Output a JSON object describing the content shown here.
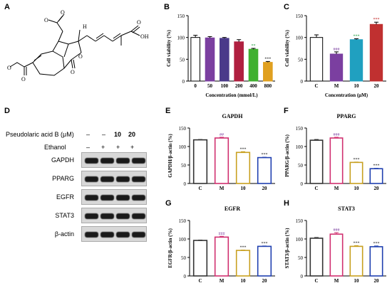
{
  "panels": {
    "A": "A",
    "B": "B",
    "C": "C",
    "D": "D",
    "E": "E",
    "F": "F",
    "G": "G",
    "H": "H"
  },
  "colors": {
    "axis": "#000000",
    "bar_C": "#333333",
    "bar_M": "#d03070",
    "bar_10": "#c8a020",
    "bar_20": "#2040b0",
    "sig_hash": "#7b3fa0",
    "sig_star_dark": "#222222",
    "sig_green": "#20a040",
    "sig_red": "#c02020"
  },
  "western_blot": {
    "treatment_label": "Pseudolaric acid B (μM)",
    "treatment_values": [
      "–",
      "–",
      "10",
      "20"
    ],
    "ethanol_label": "Ethanol",
    "ethanol_values": [
      "–",
      "+",
      "+",
      "+"
    ],
    "bands": [
      "GAPDH",
      "PPARG",
      "EGFR",
      "STAT3",
      "β-actin"
    ]
  },
  "chart_data": [
    {
      "id": "B",
      "type": "bar",
      "categories": [
        "0",
        "50",
        "100",
        "200",
        "400",
        "800"
      ],
      "values": [
        100,
        99,
        98,
        90,
        73,
        43
      ],
      "errors": [
        5,
        3,
        2,
        5,
        2,
        2
      ],
      "colors": [
        "#ffffff",
        "#7b3fa0",
        "#4a3a8a",
        "#b02040",
        "#40b030",
        "#e0a020"
      ],
      "sig": [
        "",
        "",
        "",
        "",
        "**",
        "***"
      ],
      "sig_colors": [
        "",
        "",
        "",
        "",
        "#20a040",
        "#222222"
      ],
      "xlabel": "Concentration (mmol/L)",
      "ylabel": "Cell viability (%)",
      "ylim": [
        0,
        150
      ],
      "yticks": [
        0,
        50,
        100,
        150
      ]
    },
    {
      "id": "C",
      "type": "bar",
      "categories": [
        "C",
        "M",
        "10",
        "20"
      ],
      "values": [
        100,
        62,
        95,
        130
      ],
      "errors": [
        6,
        5,
        2,
        5
      ],
      "colors": [
        "#ffffff",
        "#7b3fa0",
        "#20a0c0",
        "#c03030"
      ],
      "sig": [
        "",
        "###",
        "***",
        "***"
      ],
      "sig_colors": [
        "",
        "#7b3fa0",
        "#20a040",
        "#c02020"
      ],
      "xlabel": "Concentration (μM)",
      "ylabel": "Cell viability (%)",
      "ylim": [
        0,
        150
      ],
      "yticks": [
        0,
        50,
        100,
        150
      ]
    },
    {
      "id": "E",
      "type": "bar",
      "title": "GAPDH",
      "categories": [
        "C",
        "M",
        "10",
        "20"
      ],
      "values": [
        118,
        123,
        84,
        70
      ],
      "errors": [
        1,
        2,
        2,
        1
      ],
      "sig": [
        "",
        "##",
        "***",
        "***"
      ],
      "ylabel": "GAPDH/β-actin (%)",
      "ylim": [
        0,
        150
      ],
      "yticks": [
        0,
        50,
        100,
        150
      ]
    },
    {
      "id": "F",
      "type": "bar",
      "title": "PPARG",
      "categories": [
        "C",
        "M",
        "10",
        "20"
      ],
      "values": [
        117,
        123,
        57,
        40
      ],
      "errors": [
        2,
        2,
        1,
        1
      ],
      "sig": [
        "",
        "###",
        "***",
        "***"
      ],
      "ylabel": "PPARG/β-actin (%)",
      "ylim": [
        0,
        150
      ],
      "yticks": [
        0,
        50,
        100,
        150
      ]
    },
    {
      "id": "G",
      "type": "bar",
      "title": "EGFR",
      "categories": [
        "C",
        "M",
        "10",
        "20"
      ],
      "values": [
        96,
        105,
        69,
        80
      ],
      "errors": [
        1,
        2,
        1,
        1
      ],
      "sig": [
        "",
        "###",
        "***",
        "***"
      ],
      "ylabel": "EGFR/β-actin (%)",
      "ylim": [
        0,
        150
      ],
      "yticks": [
        0,
        50,
        100,
        150
      ]
    },
    {
      "id": "H",
      "type": "bar",
      "title": "STAT3",
      "categories": [
        "C",
        "M",
        "10",
        "20"
      ],
      "values": [
        102,
        113,
        80,
        79
      ],
      "errors": [
        2,
        4,
        2,
        2
      ],
      "sig": [
        "",
        "###",
        "***",
        "***"
      ],
      "ylabel": "STAT3/β-actin (%)",
      "ylim": [
        0,
        150
      ],
      "yticks": [
        0,
        50,
        100,
        150
      ]
    }
  ]
}
